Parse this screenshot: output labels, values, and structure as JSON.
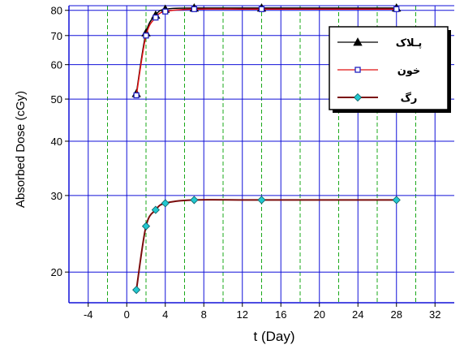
{
  "chart_data": {
    "type": "line",
    "title": "",
    "xlabel": "t  (Day)",
    "ylabel": "Absorbed Dose    (cGy)",
    "xlim": [
      -6,
      34
    ],
    "ylim": [
      17,
      82
    ],
    "y_scale": "log",
    "x_ticks": [
      -4,
      0,
      4,
      8,
      12,
      16,
      20,
      24,
      28,
      32
    ],
    "y_ticks": [
      20,
      30,
      40,
      50,
      60,
      70,
      80
    ],
    "grid": true,
    "legend_position": "top-right",
    "colors": {
      "major_grid": "#1010d8",
      "minor_grid": "#1aa81a",
      "axis": "#1010d8"
    },
    "series": [
      {
        "name": "پـلاک",
        "color": "#000000",
        "marker": "triangle",
        "marker_color": "#000000",
        "x": [
          1,
          2,
          3,
          4,
          7,
          14,
          28
        ],
        "y": [
          51.5,
          71,
          78,
          80.5,
          81,
          81,
          81
        ]
      },
      {
        "name": "خون",
        "color": "#e01010",
        "marker": "square",
        "marker_color": "#2020c0",
        "x": [
          1,
          2,
          3,
          4,
          7,
          14,
          28
        ],
        "y": [
          51,
          70,
          77,
          79.5,
          80.5,
          80.5,
          80.5
        ]
      },
      {
        "name": "رگ",
        "color": "#7a0c0c",
        "marker": "diamond",
        "marker_color": "#22c8d0",
        "x": [
          1,
          2,
          3,
          4,
          7,
          14,
          28
        ],
        "y": [
          18.2,
          25.5,
          27.8,
          28.8,
          29.3,
          29.3,
          29.3
        ]
      }
    ]
  }
}
